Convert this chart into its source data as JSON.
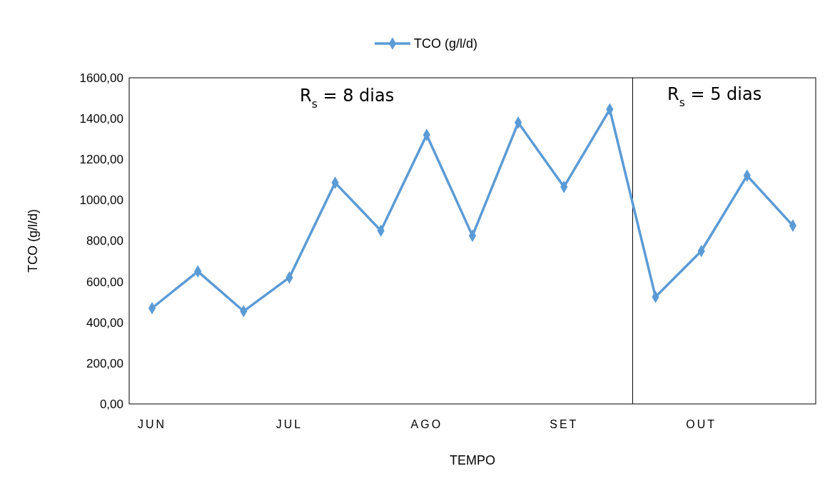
{
  "chart_data": {
    "type": "line",
    "xlabel": "TEMPO",
    "ylabel": "TCO (g/l/d)",
    "categories": [
      "JUN",
      null,
      null,
      "JUL",
      null,
      null,
      "AGO",
      null,
      null,
      "SET",
      null,
      null,
      "OUT",
      null,
      null
    ],
    "series": [
      {
        "name": "TCO (g/l/d)",
        "color": "#5b9bd5",
        "values": [
          470,
          650,
          455,
          620,
          1085,
          850,
          1320,
          825,
          1380,
          1065,
          1445,
          525,
          750,
          1120,
          875
        ]
      }
    ],
    "ylim": [
      0,
      1600
    ],
    "yticks": [
      {
        "value": 0,
        "label": "0,00"
      },
      {
        "value": 200,
        "label": "200,00"
      },
      {
        "value": 400,
        "label": "400,00"
      },
      {
        "value": 600,
        "label": "600,00"
      },
      {
        "value": 800,
        "label": "800,00"
      },
      {
        "value": 1000,
        "label": "1000,00"
      },
      {
        "value": 1200,
        "label": "1200,00"
      },
      {
        "value": 1400,
        "label": "1400,00"
      },
      {
        "value": 1600,
        "label": "1600,00"
      }
    ],
    "annotations": [
      "R$_{s}$ = 8 dias",
      "R$_{s}$ = 5 dias"
    ],
    "legend": "top",
    "marker": "diamond",
    "line_style": "solid",
    "grid": false
  }
}
